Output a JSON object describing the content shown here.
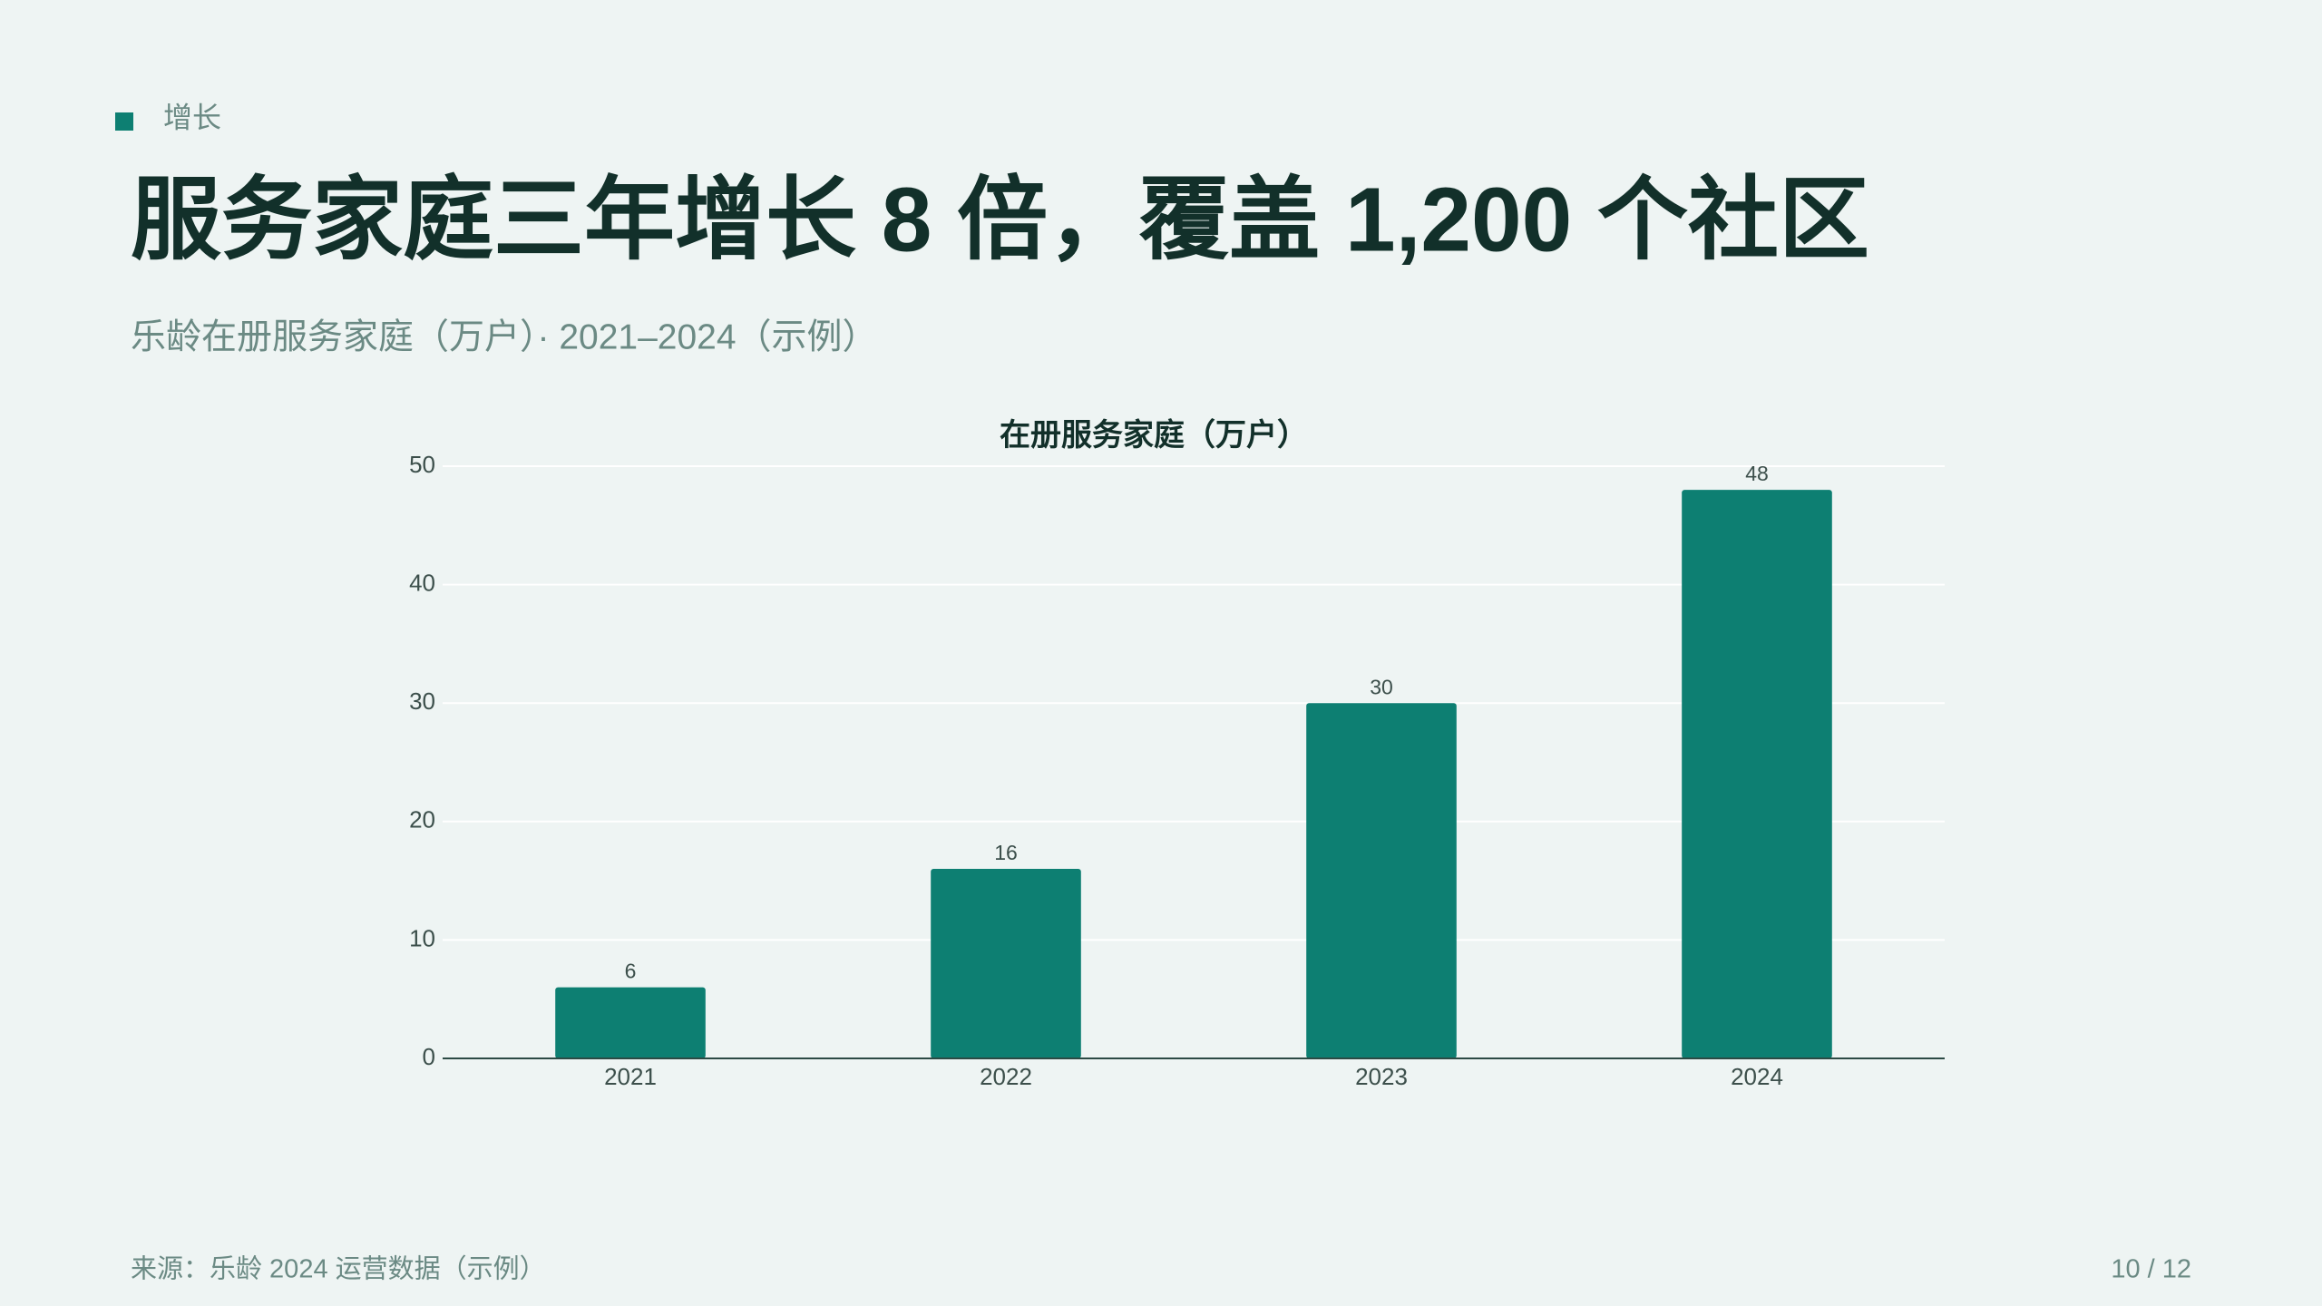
{
  "header": {
    "tag": "增长",
    "title": "服务家庭三年增长 8 倍，覆盖 1,200 个社区",
    "subtitle": "乐龄在册服务家庭（万户）· 2021–2024（示例）"
  },
  "chart_data": {
    "type": "bar",
    "title": "在册服务家庭（万户）",
    "categories": [
      "2021",
      "2022",
      "2023",
      "2024"
    ],
    "values": [
      6,
      16,
      30,
      48
    ],
    "color": "#0d7f72",
    "ylim": [
      0,
      50
    ],
    "yticks": [
      0,
      10,
      20,
      30,
      40,
      50
    ],
    "grid": true
  },
  "footer": {
    "source": "来源：乐龄 2024 运营数据（示例）",
    "page": "10 / 12"
  }
}
